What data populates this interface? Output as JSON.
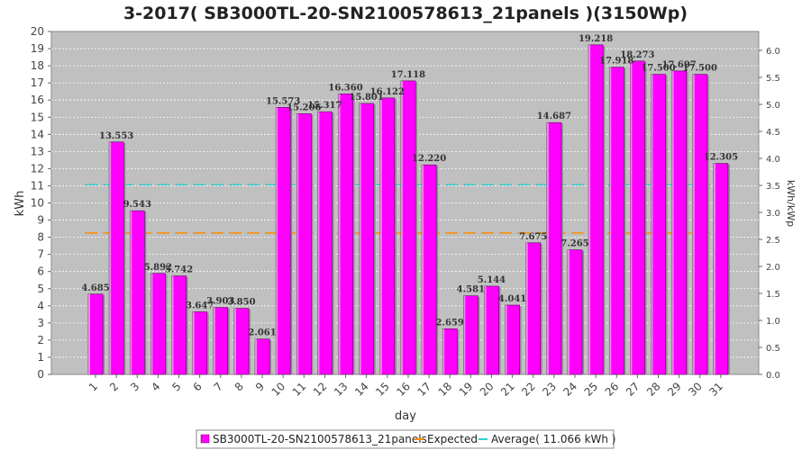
{
  "chart_data": {
    "type": "bar",
    "title": "3-2017( SB3000TL-20-SN2100578613_21panels )(3150Wp)",
    "xlabel": "day",
    "ylabel": "kWh",
    "ylabel_right": "kWh/kWp",
    "ylim": [
      0,
      20
    ],
    "ylim_right": [
      0,
      6.35
    ],
    "yticks": [
      "0",
      "1",
      "2",
      "3",
      "4",
      "5",
      "6",
      "7",
      "8",
      "9",
      "10",
      "11",
      "12",
      "13",
      "14",
      "15",
      "16",
      "17",
      "18",
      "19",
      "20"
    ],
    "yticks_right": [
      "0.0",
      "0.5",
      "1.0",
      "1.5",
      "2.0",
      "2.5",
      "3.0",
      "3.5",
      "4.0",
      "4.5",
      "5.0",
      "5.5",
      "6.0"
    ],
    "grid": true,
    "categories": [
      "1",
      "2",
      "3",
      "4",
      "5",
      "6",
      "7",
      "8",
      "9",
      "10",
      "11",
      "12",
      "13",
      "14",
      "15",
      "16",
      "17",
      "18",
      "19",
      "20",
      "21",
      "22",
      "23",
      "24",
      "25",
      "26",
      "27",
      "28",
      "29",
      "30",
      "31"
    ],
    "series": [
      {
        "name": "SB3000TL-20-SN2100578613_21panels",
        "color": "#ff00ff",
        "values": [
          4.685,
          13.553,
          9.543,
          5.892,
          5.742,
          3.647,
          3.903,
          3.85,
          2.061,
          15.573,
          15.206,
          15.317,
          16.36,
          15.801,
          16.122,
          17.118,
          12.22,
          2.659,
          4.581,
          5.144,
          4.041,
          7.675,
          14.687,
          7.265,
          19.218,
          17.918,
          18.273,
          17.5,
          17.697,
          17.5,
          12.305
        ],
        "labels": [
          "4.685",
          "13.553",
          "9.543",
          "5.892",
          "5.742",
          "3.647",
          "3.903",
          "3.850",
          "2.061",
          "15.573",
          "15.206",
          "15.317",
          "16.360",
          "15.801",
          "16.122",
          "17.118",
          "12.220",
          "2.659",
          "4.581",
          "5.144",
          "4.041",
          "7.675",
          "14.687",
          "7.265",
          "19.218",
          "17.918",
          "18.273",
          "17.500",
          "17.697",
          "17.500",
          "12.305"
        ]
      }
    ],
    "reference_lines": [
      {
        "name": "Expected",
        "value": 8.25,
        "color": "#ff8c00"
      },
      {
        "name": "Average( 11.066 kWh )",
        "value": 11.066,
        "color": "#33cccc"
      }
    ],
    "legend_position": "bottom"
  }
}
